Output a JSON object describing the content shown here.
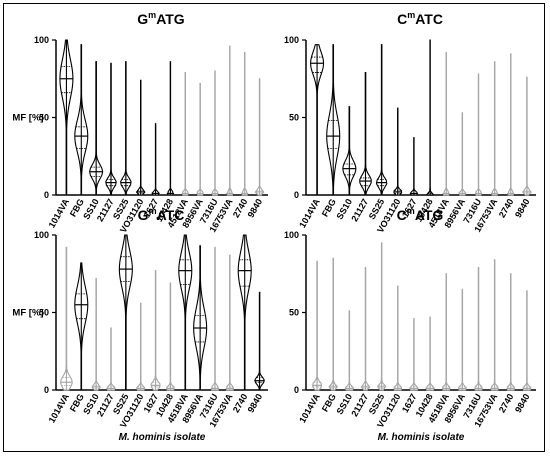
{
  "chart_data": [
    {
      "type": "violin",
      "title_base": "G",
      "title_sup": "m",
      "title_rest": "ATG",
      "ylabel": "MF [%]",
      "xlabel": "",
      "ylim": [
        0,
        100
      ],
      "yticks": [
        "0",
        "50",
        "100"
      ],
      "categories": [
        "1014VA",
        "FBG",
        "SS10",
        "21127",
        "SS25",
        "VO31120",
        "1627",
        "10428",
        "4518VA",
        "8956VA",
        "7316U",
        "16753VA",
        "2740",
        "9840"
      ],
      "colors": [
        "#000000",
        "#000000",
        "#000000",
        "#000000",
        "#000000",
        "#000000",
        "#000000",
        "#000000",
        "#a6a6a6",
        "#a6a6a6",
        "#a6a6a6",
        "#a6a6a6",
        "#a6a6a6",
        "#a6a6a6"
      ],
      "max": [
        100,
        97,
        86,
        85,
        86,
        74,
        46,
        86,
        79,
        72,
        80,
        96,
        92,
        75
      ],
      "median": [
        75,
        38,
        15,
        8,
        8,
        2,
        1,
        1,
        1,
        1,
        1,
        1,
        1,
        2
      ],
      "q1": [
        66,
        30,
        12,
        6,
        6,
        1,
        0,
        0,
        0,
        0,
        0,
        0,
        0,
        1
      ],
      "q3": [
        83,
        44,
        18,
        10,
        10,
        3,
        1,
        1,
        1,
        1,
        1,
        1,
        1,
        3
      ]
    },
    {
      "type": "violin",
      "title_base": "C",
      "title_sup": "m",
      "title_rest": "ATC",
      "ylabel": "",
      "xlabel": "",
      "ylim": [
        0,
        100
      ],
      "yticks": [
        "0",
        "50",
        "100"
      ],
      "categories": [
        "1014VA",
        "FBG",
        "SS10",
        "21127",
        "SS25",
        "VO31120",
        "1627",
        "10428",
        "4518VA",
        "8956VA",
        "7316U",
        "16753VA",
        "2740",
        "9840"
      ],
      "colors": [
        "#000000",
        "#000000",
        "#000000",
        "#000000",
        "#000000",
        "#000000",
        "#000000",
        "#000000",
        "#a6a6a6",
        "#a6a6a6",
        "#a6a6a6",
        "#a6a6a6",
        "#a6a6a6",
        "#a6a6a6"
      ],
      "max": [
        97,
        97,
        57,
        79,
        97,
        56,
        37,
        100,
        92,
        53,
        78,
        86,
        91,
        76
      ],
      "median": [
        85,
        38,
        17,
        9,
        8,
        2,
        1,
        0,
        1,
        1,
        1,
        1,
        1,
        2
      ],
      "q1": [
        79,
        30,
        13,
        6,
        6,
        1,
        0,
        0,
        0,
        0,
        0,
        0,
        0,
        1
      ],
      "q3": [
        89,
        48,
        20,
        11,
        10,
        3,
        1,
        1,
        1,
        1,
        1,
        1,
        1,
        3
      ]
    },
    {
      "type": "violin",
      "title_base": "G",
      "title_sup": "m",
      "title_rest": "ATC",
      "ylabel": "MF [%]",
      "xlabel": "M. hominis isolate",
      "ylim": [
        0,
        100
      ],
      "yticks": [
        "0",
        "50",
        "100"
      ],
      "categories": [
        "1014VA",
        "FBG",
        "SS10",
        "21127",
        "SS25",
        "VO31120",
        "1627",
        "10428",
        "4518VA",
        "8956VA",
        "7316U",
        "16753VA",
        "2740",
        "9840"
      ],
      "colors": [
        "#a6a6a6",
        "#000000",
        "#a6a6a6",
        "#a6a6a6",
        "#000000",
        "#a6a6a6",
        "#a6a6a6",
        "#a6a6a6",
        "#000000",
        "#000000",
        "#a6a6a6",
        "#a6a6a6",
        "#000000",
        "#000000"
      ],
      "max": [
        92,
        82,
        72,
        40,
        100,
        56,
        77,
        69,
        100,
        93,
        92,
        87,
        100,
        63
      ],
      "median": [
        5,
        55,
        2,
        1,
        78,
        1,
        3,
        1,
        77,
        40,
        1,
        1,
        77,
        6
      ],
      "q1": [
        3,
        46,
        1,
        0,
        70,
        0,
        2,
        0,
        68,
        31,
        0,
        0,
        67,
        5
      ],
      "q3": [
        8,
        62,
        3,
        2,
        86,
        2,
        5,
        2,
        84,
        48,
        2,
        2,
        84,
        8
      ]
    },
    {
      "type": "violin",
      "title_base": "C",
      "title_sup": "m",
      "title_rest": "ATG",
      "ylabel": "",
      "xlabel": "M. hominis isolate",
      "ylim": [
        0,
        100
      ],
      "yticks": [
        "0",
        "50",
        "100"
      ],
      "categories": [
        "1014VA",
        "FBG",
        "SS10",
        "21127",
        "SS25",
        "VO31120",
        "1627",
        "10428",
        "4518VA",
        "8956VA",
        "7316U",
        "16753VA",
        "2740",
        "9840"
      ],
      "colors": [
        "#a6a6a6",
        "#a6a6a6",
        "#a6a6a6",
        "#a6a6a6",
        "#a6a6a6",
        "#a6a6a6",
        "#a6a6a6",
        "#a6a6a6",
        "#a6a6a6",
        "#a6a6a6",
        "#a6a6a6",
        "#a6a6a6",
        "#a6a6a6",
        "#a6a6a6"
      ],
      "max": [
        83,
        85,
        51,
        79,
        95,
        67,
        46,
        47,
        75,
        65,
        79,
        84,
        75,
        64
      ],
      "median": [
        3,
        2,
        1,
        2,
        2,
        1,
        1,
        1,
        1,
        1,
        1,
        1,
        1,
        1
      ],
      "q1": [
        2,
        1,
        0,
        1,
        1,
        0,
        0,
        0,
        0,
        0,
        0,
        0,
        0,
        0
      ],
      "q3": [
        5,
        3,
        2,
        3,
        3,
        2,
        2,
        2,
        2,
        2,
        2,
        2,
        2,
        2
      ]
    }
  ]
}
